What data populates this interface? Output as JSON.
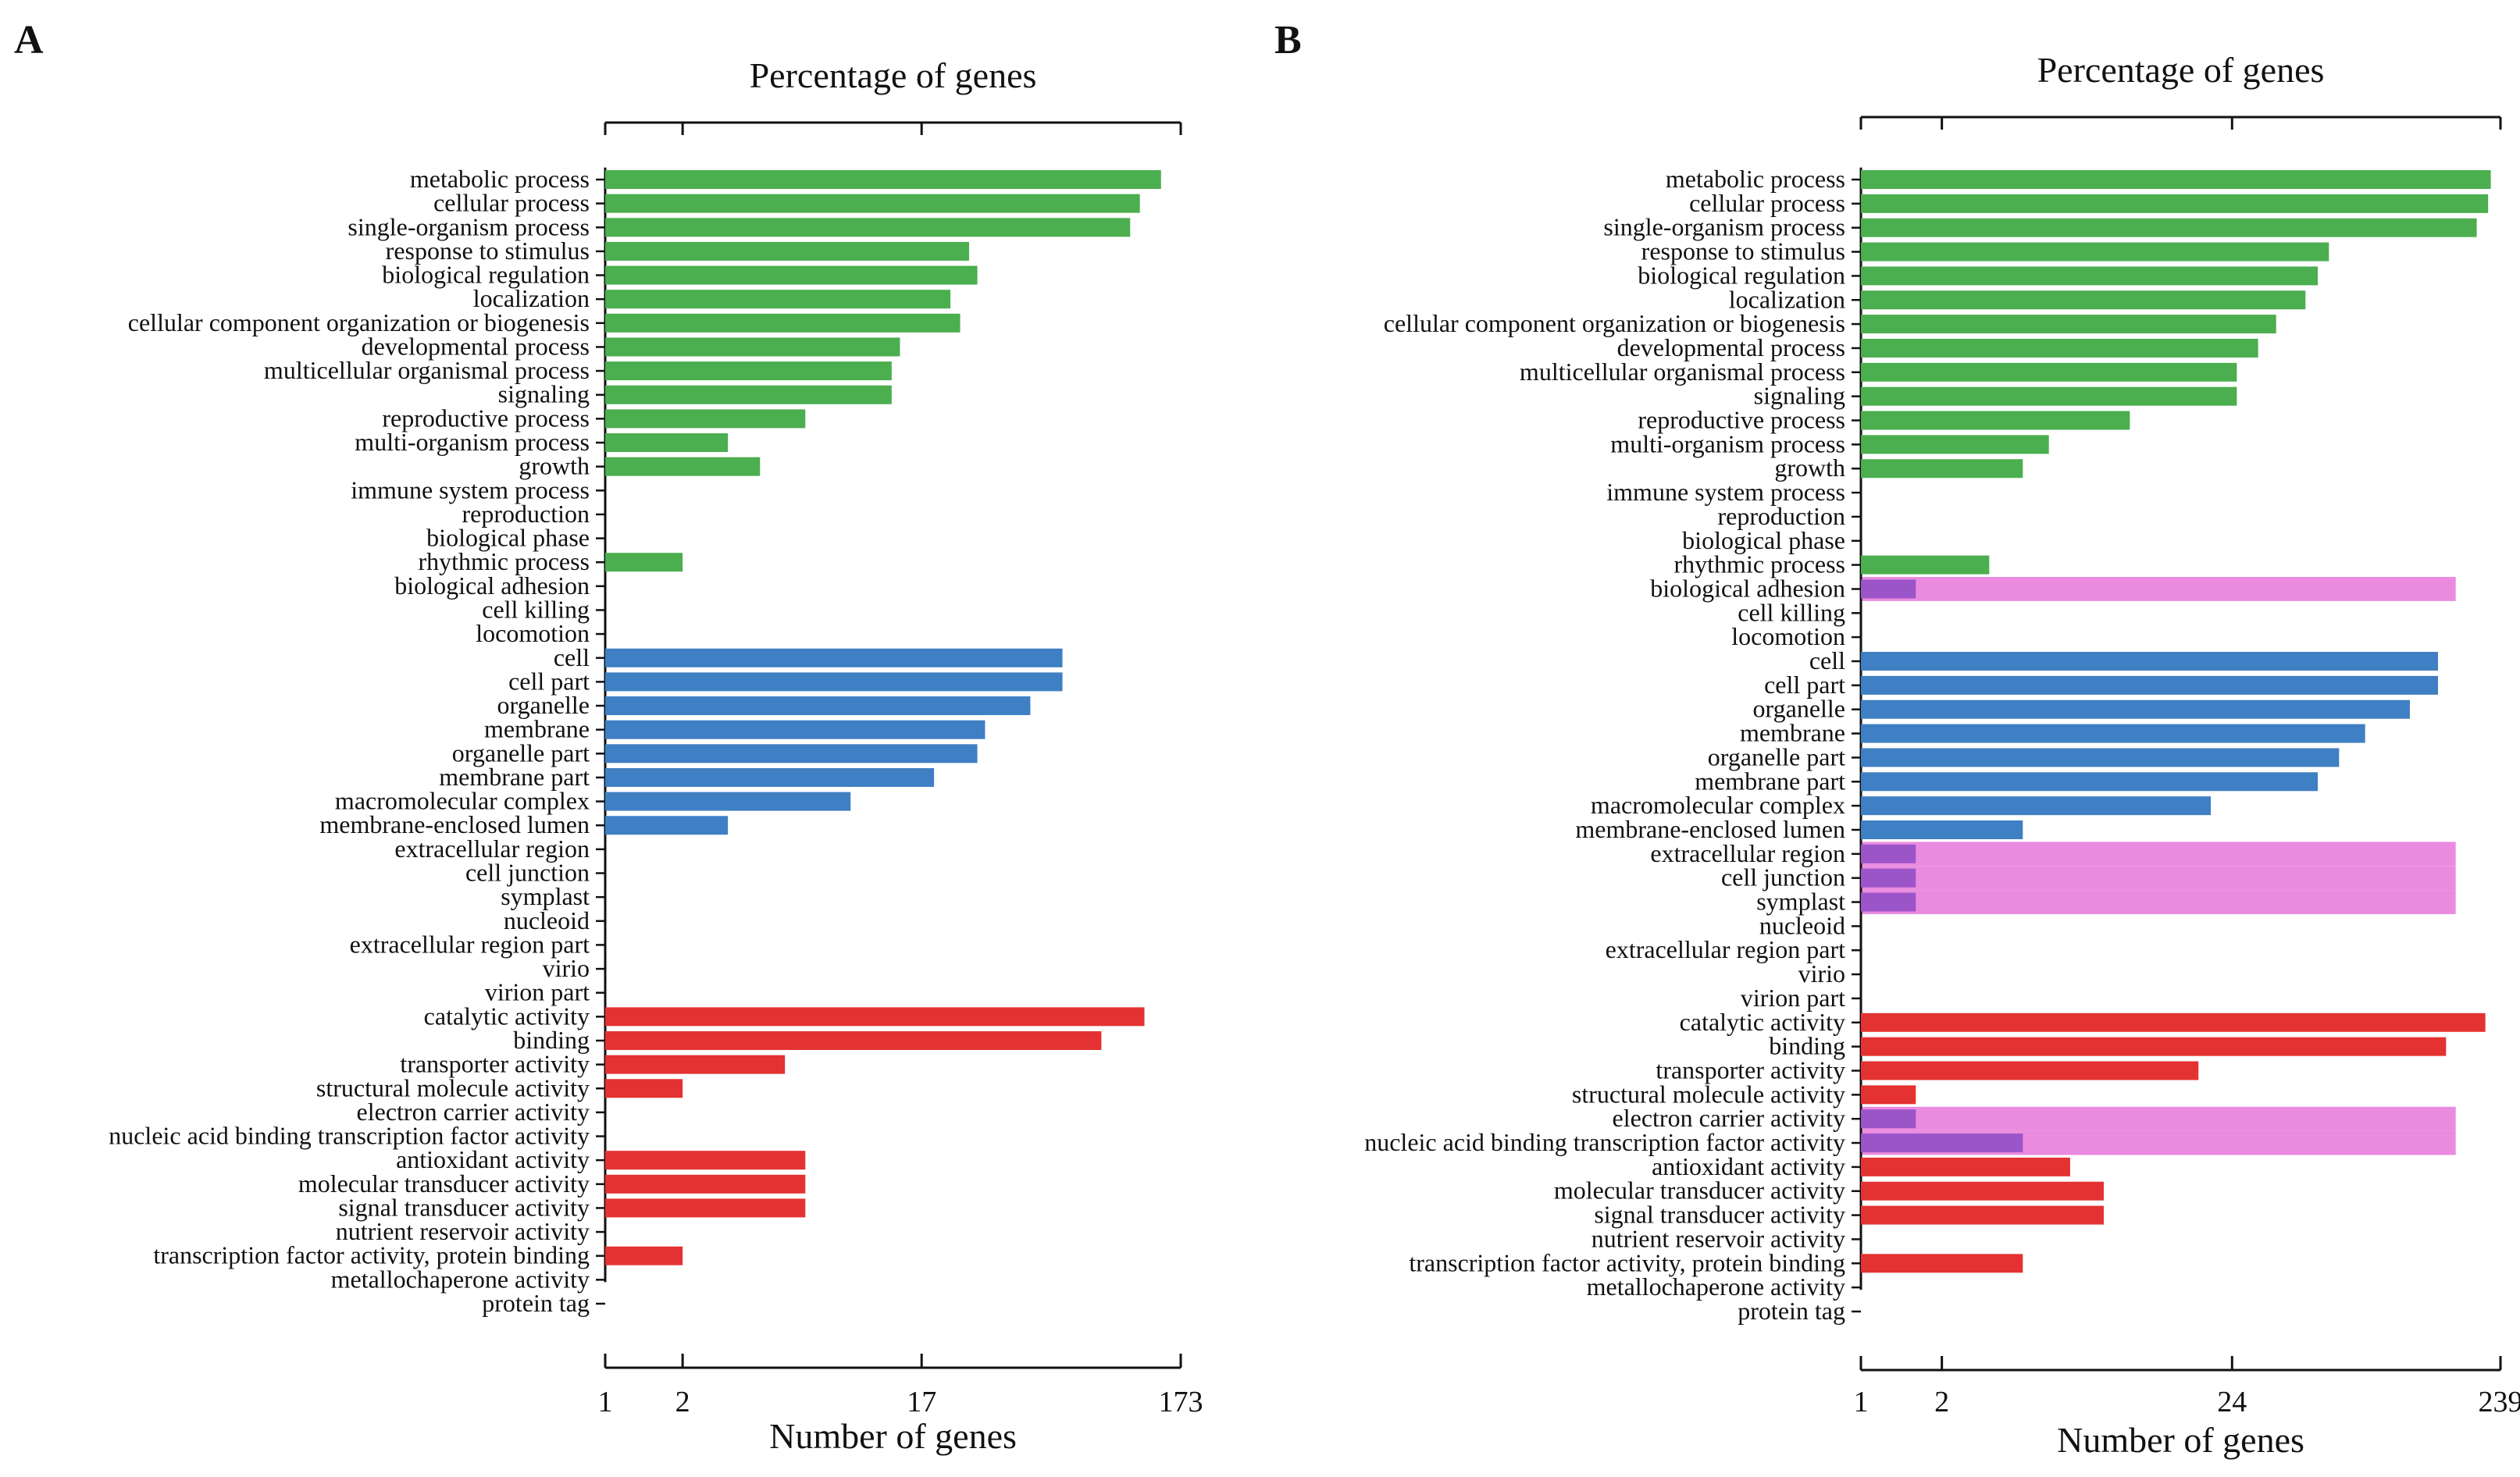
{
  "figure": {
    "panels": [
      "A",
      "B"
    ],
    "category_colors": {
      "biological_process": "#4bae4f",
      "cellular_component": "#3f7fc4",
      "molecular_function": "#e43232",
      "highlight": "#ea8be0"
    }
  },
  "chart_data": [
    {
      "panel": "A",
      "type": "bar",
      "orientation": "horizontal",
      "xlabel": "Number of genes",
      "top_axis_label": "Percentage of genes",
      "x_scale": "log",
      "x_ticks": [
        "1",
        "2",
        "17",
        "173"
      ],
      "xlim": [
        1,
        173
      ],
      "categories": [
        "metabolic process",
        "cellular process",
        "single-organism process",
        "response to stimulus",
        "biological regulation",
        "localization",
        "cellular component organization or biogenesis",
        "developmental process",
        "multicellular organismal process",
        "signaling",
        "reproductive process",
        "multi-organism process",
        "growth",
        "immune system process",
        "reproduction",
        "biological phase",
        "rhythmic process",
        "biological adhesion",
        "cell killing",
        "locomotion",
        "cell",
        "cell part",
        "organelle",
        "membrane",
        "organelle part",
        "membrane part",
        "macromolecular complex",
        "membrane-enclosed lumen",
        "extracellular region",
        "cell junction",
        "symplast",
        "nucleoid",
        "extracellular region part",
        "virio",
        "virion part",
        "catalytic activity",
        "binding",
        "transporter activity",
        "structural molecule activity",
        "electron carrier activity",
        "nucleic acid binding transcription factor activity",
        "antioxidant activity",
        "molecular transducer activity",
        "signal transducer activity",
        "nutrient reservoir activity",
        "transcription factor activity, protein binding",
        "metallochaperone activity",
        "protein tag"
      ],
      "groups": [
        "bp",
        "bp",
        "bp",
        "bp",
        "bp",
        "bp",
        "bp",
        "bp",
        "bp",
        "bp",
        "bp",
        "bp",
        "bp",
        "bp",
        "bp",
        "bp",
        "bp",
        "bp",
        "bp",
        "bp",
        "cc",
        "cc",
        "cc",
        "cc",
        "cc",
        "cc",
        "cc",
        "cc",
        "cc",
        "cc",
        "cc",
        "cc",
        "cc",
        "cc",
        "cc",
        "mf",
        "mf",
        "mf",
        "mf",
        "mf",
        "mf",
        "mf",
        "mf",
        "mf",
        "mf",
        "mf",
        "mf",
        "mf"
      ],
      "values": [
        145,
        120,
        110,
        26,
        28,
        22,
        24,
        14,
        13,
        13,
        6,
        3,
        4,
        0,
        0,
        0,
        2,
        0,
        0,
        0,
        60,
        60,
        45,
        30,
        28,
        19,
        9,
        3,
        0,
        0,
        0,
        0,
        0,
        0,
        0,
        125,
        85,
        5,
        2,
        0,
        0,
        6,
        6,
        6,
        0,
        2,
        0,
        0
      ]
    },
    {
      "panel": "B",
      "type": "bar",
      "orientation": "horizontal",
      "xlabel": "Number of genes",
      "top_axis_label": "Percentage of genes",
      "x_scale": "log",
      "x_ticks": [
        "1",
        "2",
        "24",
        "239"
      ],
      "xlim": [
        1,
        239
      ],
      "categories": [
        "metabolic process",
        "cellular process",
        "single-organism process",
        "response to stimulus",
        "biological regulation",
        "localization",
        "cellular component organization or biogenesis",
        "developmental process",
        "multicellular organismal process",
        "signaling",
        "reproductive process",
        "multi-organism process",
        "growth",
        "immune system process",
        "reproduction",
        "biological phase",
        "rhythmic process",
        "biological adhesion",
        "cell killing",
        "locomotion",
        "cell",
        "cell part",
        "organelle",
        "membrane",
        "organelle part",
        "membrane part",
        "macromolecular complex",
        "membrane-enclosed lumen",
        "extracellular region",
        "cell junction",
        "symplast",
        "nucleoid",
        "extracellular region part",
        "virio",
        "virion part",
        "catalytic activity",
        "binding",
        "transporter activity",
        "structural molecule activity",
        "electron carrier activity",
        "nucleic acid binding transcription factor activity",
        "antioxidant activity",
        "molecular transducer activity",
        "signal transducer activity",
        "nutrient reservoir activity",
        "transcription factor activity, protein binding",
        "metallochaperone activity",
        "protein tag"
      ],
      "groups": [
        "bp",
        "bp",
        "bp",
        "bp",
        "bp",
        "bp",
        "bp",
        "bp",
        "bp",
        "bp",
        "bp",
        "bp",
        "bp",
        "bp",
        "bp",
        "bp",
        "bp",
        "bp",
        "bp",
        "bp",
        "cc",
        "cc",
        "cc",
        "cc",
        "cc",
        "cc",
        "cc",
        "cc",
        "cc",
        "cc",
        "cc",
        "cc",
        "cc",
        "cc",
        "cc",
        "mf",
        "mf",
        "mf",
        "mf",
        "mf",
        "mf",
        "mf",
        "mf",
        "mf",
        "mf",
        "mf",
        "mf",
        "mf"
      ],
      "values": [
        220,
        215,
        195,
        55,
        50,
        45,
        35,
        30,
        25,
        25,
        10,
        5,
        4,
        0,
        0,
        0,
        3,
        1.6,
        0,
        0,
        140,
        140,
        110,
        75,
        60,
        50,
        20,
        4,
        1.6,
        1.6,
        1.6,
        0,
        0,
        0,
        0,
        210,
        150,
        18,
        1.6,
        1.6,
        4,
        6,
        8,
        8,
        0,
        4,
        0,
        0
      ],
      "highlighted_categories": [
        "biological adhesion",
        "extracellular region",
        "cell junction",
        "symplast",
        "electron carrier activity",
        "nucleic acid binding transcription factor activity"
      ]
    }
  ]
}
